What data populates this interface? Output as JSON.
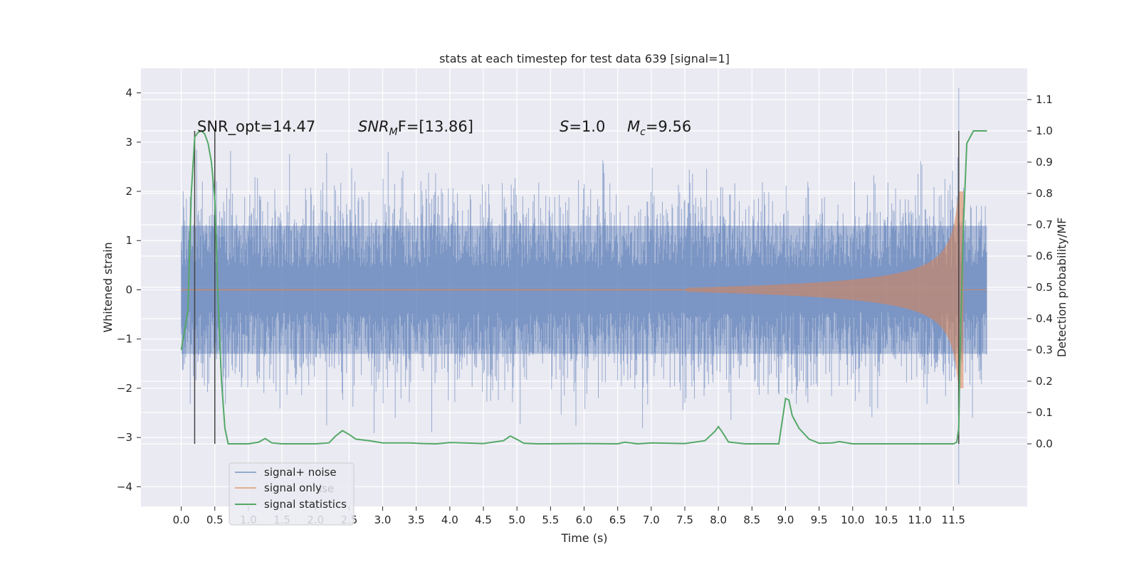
{
  "chart_data": {
    "type": "line",
    "title": "stats at each timestep for test data 639 [signal=1]",
    "xlabel": "Time (s)",
    "ylabel_left": "Whitened strain",
    "ylabel_right": "Detection probability/MF",
    "xlim": [
      -0.6,
      12.6
    ],
    "ylim_left": [
      -4.4,
      4.5
    ],
    "ylim_right": [
      -0.2,
      1.2
    ],
    "xticks": [
      0.0,
      0.5,
      1.0,
      1.5,
      2.0,
      2.5,
      3.0,
      3.5,
      4.0,
      4.5,
      5.0,
      5.5,
      6.0,
      6.5,
      7.0,
      7.5,
      8.0,
      8.5,
      9.0,
      9.5,
      10.0,
      10.5,
      11.0,
      11.5
    ],
    "xtick_labels": [
      "0.0",
      "0.5",
      "1.0",
      "1.5",
      "2.0",
      "2.5",
      "3.0",
      "3.5",
      "4.0",
      "4.5",
      "5.0",
      "5.5",
      "6.0",
      "6.5",
      "7.0",
      "7.5",
      "8.0",
      "8.5",
      "9.0",
      "9.5",
      "10.0",
      "10.5",
      "11.0",
      "11.5"
    ],
    "yticks_left": [
      4,
      3,
      2,
      1,
      0,
      -1,
      -2,
      -3,
      -4
    ],
    "ytick_labels_left": [
      "4",
      "3",
      "2",
      "1",
      "0",
      "−1",
      "−2",
      "−3",
      "−4"
    ],
    "yticks_right": [
      1.1,
      1.0,
      0.9,
      0.8,
      0.7,
      0.6,
      0.5,
      0.4,
      0.3,
      0.2,
      0.1,
      0.0
    ],
    "ytick_labels_right": [
      "1.1",
      "1.0",
      "0.9",
      "0.8",
      "0.7",
      "0.6",
      "0.5",
      "0.4",
      "0.3",
      "0.2",
      "0.1",
      "0.0"
    ],
    "grid": true,
    "legend_position": "lower-left",
    "series": [
      {
        "name": "signal+ noise",
        "color": "#4c72b0",
        "axis": "left",
        "kind": "noise",
        "t_start": 0.0,
        "t_end": 12.0,
        "typical_range": [
          -1.5,
          1.5
        ],
        "max": 4.1,
        "min": -3.95
      },
      {
        "name": "signal only",
        "color": "#dd8452",
        "axis": "left",
        "kind": "chirp",
        "t_start": 7.5,
        "t_end": 11.65,
        "peak_amplitude": 2.0
      },
      {
        "name": "signal statistics",
        "color": "#55a868",
        "axis": "right",
        "x": [
          0.0,
          0.05,
          0.1,
          0.15,
          0.2,
          0.25,
          0.3,
          0.35,
          0.4,
          0.45,
          0.5,
          0.55,
          0.6,
          0.65,
          0.7,
          0.75,
          0.8,
          1.0,
          1.15,
          1.25,
          1.35,
          1.5,
          2.0,
          2.2,
          2.3,
          2.4,
          2.5,
          2.6,
          2.8,
          3.0,
          3.4,
          3.6,
          3.8,
          4.0,
          4.5,
          4.8,
          4.9,
          5.0,
          5.1,
          5.3,
          6.0,
          6.5,
          6.6,
          6.8,
          7.0,
          7.5,
          7.8,
          7.95,
          8.0,
          8.05,
          8.15,
          8.4,
          8.9,
          8.97,
          9.0,
          9.05,
          9.1,
          9.2,
          9.35,
          9.5,
          9.7,
          9.8,
          10.0,
          11.0,
          11.4,
          11.5,
          11.55,
          11.58,
          11.6,
          11.65,
          11.7,
          11.8,
          12.0
        ],
        "y": [
          0.3,
          0.36,
          0.43,
          0.8,
          0.98,
          0.995,
          1.0,
          0.99,
          0.96,
          0.9,
          0.78,
          0.45,
          0.2,
          0.05,
          0.0,
          0.0,
          0.0,
          0.0,
          0.005,
          0.017,
          0.003,
          0.0,
          0.0,
          0.003,
          0.025,
          0.042,
          0.03,
          0.015,
          0.01,
          0.003,
          0.003,
          0.001,
          0.0,
          0.004,
          0.001,
          0.01,
          0.025,
          0.014,
          0.002,
          0.0,
          0.001,
          0.0,
          0.005,
          0.0,
          0.003,
          0.001,
          0.01,
          0.04,
          0.055,
          0.04,
          0.006,
          0.0,
          0.0,
          0.1,
          0.145,
          0.14,
          0.09,
          0.05,
          0.015,
          0.002,
          0.003,
          0.007,
          0.0,
          0.0,
          0.0,
          0.0,
          0.005,
          0.05,
          0.3,
          0.7,
          0.96,
          1.0,
          1.0
        ]
      }
    ],
    "vlines": [
      0.2,
      0.5,
      11.58
    ],
    "annotations": [
      {
        "text": "SNR_opt=14.47",
        "x": 0.2
      },
      {
        "text_main": "SNR",
        "text_sub": "M",
        "text_rest": "F=[13.86]",
        "x": 2.6
      },
      {
        "text_main": "S",
        "text_rest": "=1.0",
        "x": 5.6
      },
      {
        "text_main": "M",
        "text_sub": "c",
        "text_rest": "=9.56",
        "x": 6.6
      }
    ],
    "legend_ghost_text": "ise"
  }
}
